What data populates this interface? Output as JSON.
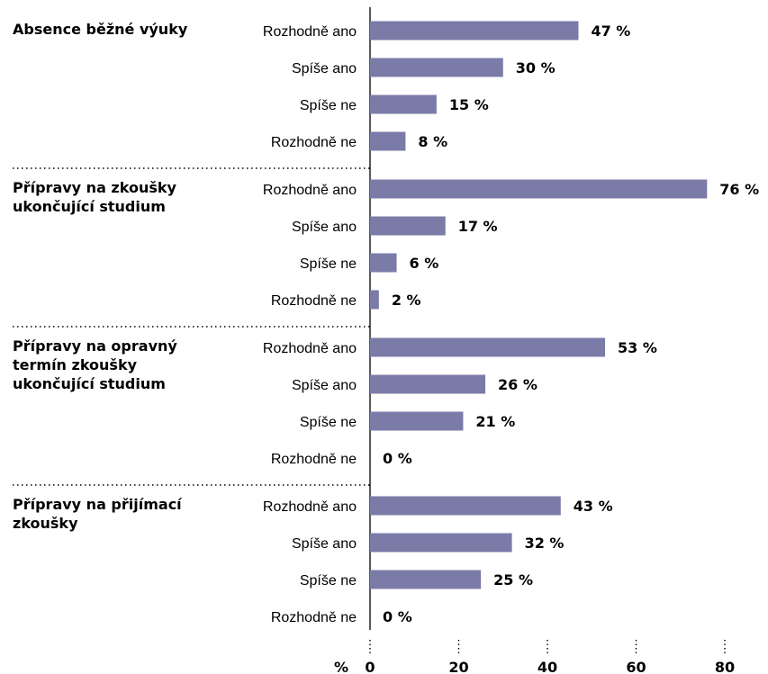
{
  "chart_data": {
    "type": "bar",
    "orientation": "horizontal",
    "unit": "%",
    "xlim": [
      0,
      80
    ],
    "x_ticks": [
      "0",
      "20",
      "40",
      "60",
      "80"
    ],
    "colors": {
      "bar": "#7b7ba8",
      "axis": "#000000"
    },
    "groups": [
      {
        "label": "Absence běžné výuky",
        "categories": [
          "Rozhodně ano",
          "Spíše ano",
          "Spíše ne",
          "Rozhodně ne"
        ],
        "values": [
          47,
          30,
          15,
          8
        ],
        "value_labels": [
          "47 %",
          "30 %",
          "15 %",
          "8 %"
        ]
      },
      {
        "label": "Přípravy na zkoušky ukončující studium",
        "categories": [
          "Rozhodně ano",
          "Spíše ano",
          "Spíše ne",
          "Rozhodně ne"
        ],
        "values": [
          76,
          17,
          6,
          2
        ],
        "value_labels": [
          "76 %",
          "17 %",
          "6 %",
          "2 %"
        ]
      },
      {
        "label": "Přípravy na opravný termín zkoušky ukončující studium",
        "categories": [
          "Rozhodně ano",
          "Spíše ano",
          "Spíše ne",
          "Rozhodně ne"
        ],
        "values": [
          53,
          26,
          21,
          0
        ],
        "value_labels": [
          "53 %",
          "26 %",
          "21 %",
          "0 %"
        ]
      },
      {
        "label": "Přípravy na přijímací zkoušky",
        "categories": [
          "Rozhodně ano",
          "Spíše ano",
          "Spíše ne",
          "Rozhodně ne"
        ],
        "values": [
          43,
          32,
          25,
          0
        ],
        "value_labels": [
          "43 %",
          "32 %",
          "25 %",
          "0 %"
        ]
      }
    ]
  }
}
